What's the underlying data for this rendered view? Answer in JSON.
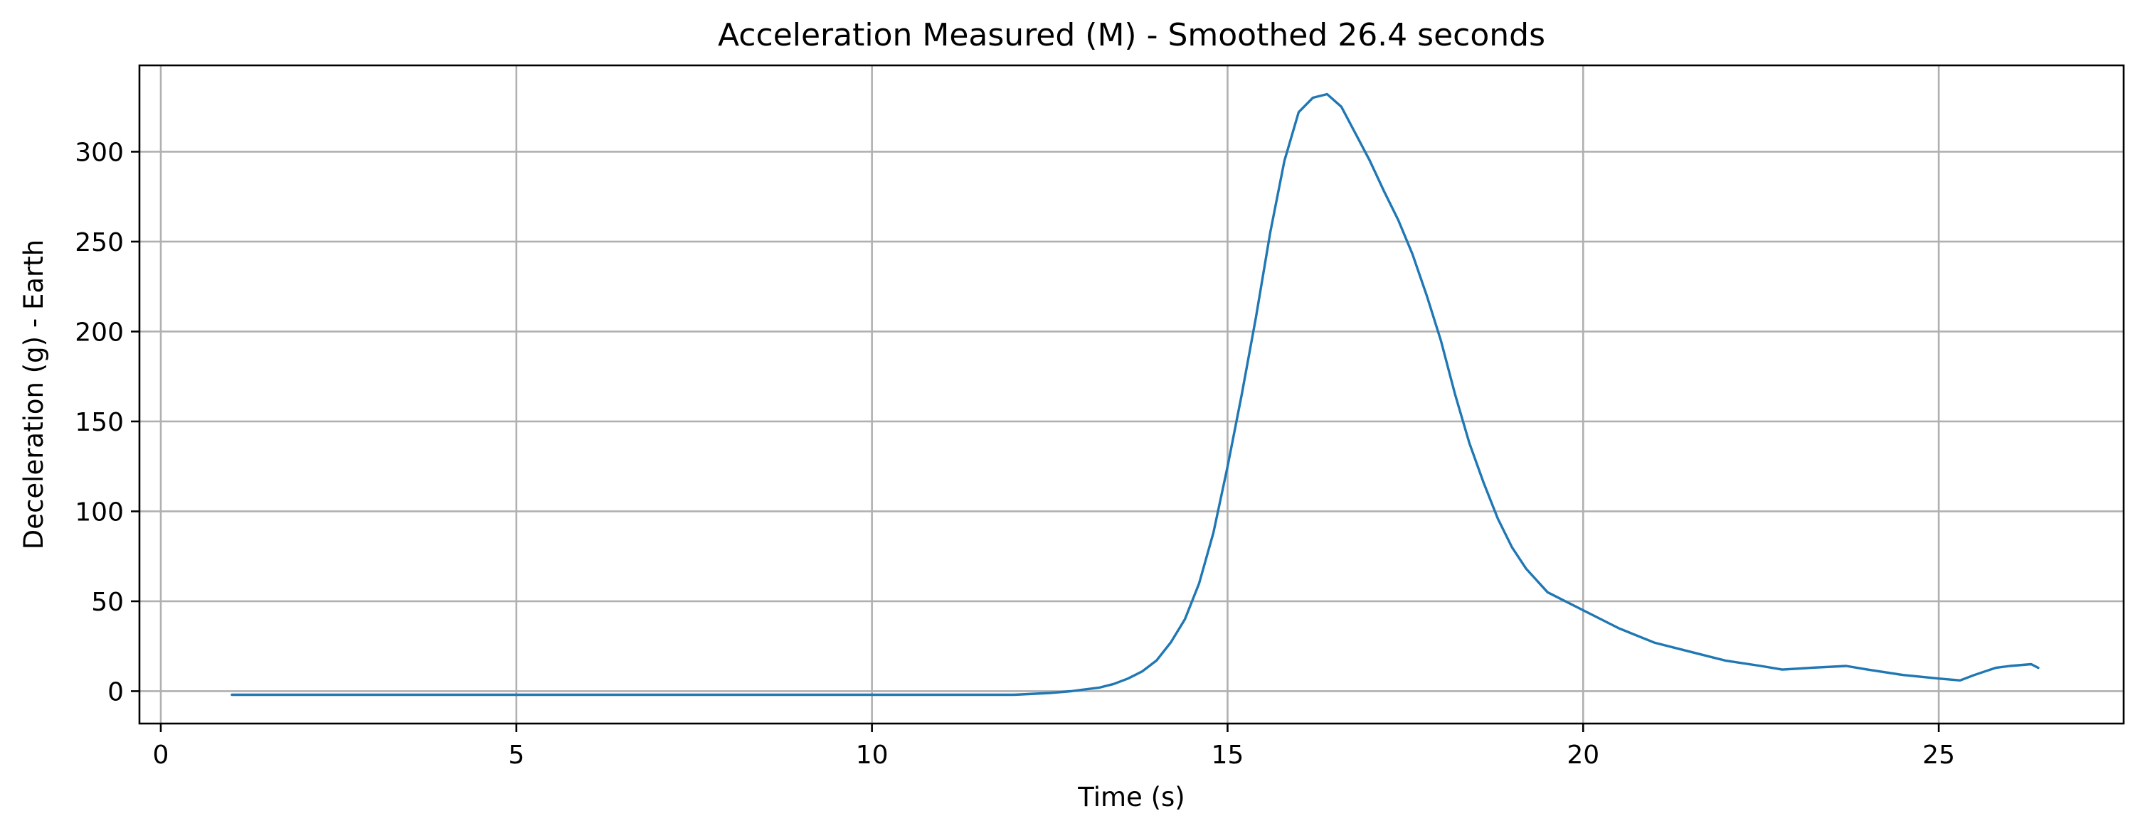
{
  "chart_data": {
    "type": "line",
    "title": "Acceleration Measured (M) - Smoothed 26.4 seconds",
    "xlabel": "Time (s)",
    "ylabel": "Deceleration (g) - Earth",
    "xlim": [
      -0.3,
      27.6
    ],
    "ylim": [
      -18,
      348
    ],
    "xticks": [
      0,
      5,
      10,
      15,
      20,
      25
    ],
    "yticks": [
      0,
      50,
      100,
      150,
      200,
      250,
      300
    ],
    "grid": true,
    "legend": "none",
    "series": [
      {
        "color": "#1f77b4",
        "x": [
          1.0,
          5.0,
          10.0,
          12.0,
          12.5,
          12.8,
          13.0,
          13.2,
          13.4,
          13.6,
          13.8,
          14.0,
          14.2,
          14.4,
          14.6,
          14.8,
          15.0,
          15.2,
          15.4,
          15.6,
          15.8,
          16.0,
          16.2,
          16.4,
          16.6,
          16.8,
          17.0,
          17.2,
          17.4,
          17.6,
          17.8,
          18.0,
          18.2,
          18.4,
          18.6,
          18.8,
          19.0,
          19.2,
          19.5,
          20.0,
          20.5,
          21.0,
          21.5,
          22.0,
          22.5,
          22.8,
          23.2,
          23.7,
          24.0,
          24.5,
          25.0,
          25.3,
          25.5,
          25.8,
          26.0,
          26.3,
          26.4
        ],
        "y": [
          -2,
          -2,
          -2,
          -2,
          -1,
          0,
          1,
          2,
          4,
          7,
          11,
          17,
          27,
          40,
          60,
          88,
          125,
          165,
          208,
          255,
          295,
          322,
          330,
          332,
          325,
          310,
          295,
          278,
          262,
          243,
          220,
          195,
          165,
          138,
          116,
          96,
          80,
          68,
          55,
          45,
          35,
          27,
          22,
          17,
          14,
          12,
          13,
          14,
          12,
          9,
          7,
          6,
          9,
          13,
          14,
          15,
          13
        ]
      }
    ]
  }
}
